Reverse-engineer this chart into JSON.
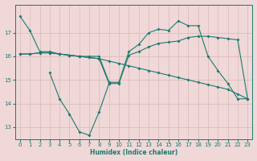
{
  "xlabel": "Humidex (Indice chaleur)",
  "x": [
    0,
    1,
    2,
    3,
    4,
    5,
    6,
    7,
    8,
    9,
    10,
    11,
    12,
    13,
    14,
    15,
    16,
    17,
    18,
    19,
    20,
    21,
    22,
    23
  ],
  "line1": [
    17.7,
    17.1,
    16.2,
    16.2,
    16.1,
    16.05,
    16.0,
    16.0,
    16.0,
    14.9,
    14.9,
    16.2,
    16.5,
    17.0,
    17.15,
    17.1,
    17.5,
    17.3,
    17.3,
    16.0,
    15.4,
    14.85,
    14.2,
    14.2
  ],
  "line2": [
    16.1,
    16.1,
    16.15,
    16.15,
    16.1,
    16.05,
    16.0,
    15.95,
    15.9,
    14.85,
    14.85,
    16.05,
    16.2,
    16.4,
    16.55,
    16.6,
    16.65,
    16.8,
    16.85,
    16.85,
    16.8,
    16.75,
    16.7,
    14.2
  ],
  "line3": [
    16.1,
    16.1,
    16.15,
    16.15,
    16.1,
    16.05,
    16.0,
    15.95,
    15.9,
    15.8,
    15.7,
    15.6,
    15.5,
    15.4,
    15.3,
    15.2,
    15.1,
    15.0,
    14.9,
    14.8,
    14.7,
    14.6,
    14.4,
    14.2
  ],
  "line4": [
    null,
    null,
    null,
    15.3,
    14.2,
    13.55,
    12.8,
    12.65,
    13.65,
    14.85,
    null,
    null,
    null,
    null,
    null,
    null,
    null,
    null,
    null,
    null,
    null,
    null,
    null,
    null
  ],
  "line_color": "#1a7a6e",
  "bg_color": "#f0d8d8",
  "plot_bg_color": "#f0d8d8",
  "grid_color": "#d8b8b8",
  "ylim": [
    12.5,
    18.2
  ],
  "xlim": [
    -0.5,
    23.5
  ],
  "yticks": [
    13,
    14,
    15,
    16,
    17
  ],
  "xticks": [
    0,
    1,
    2,
    3,
    4,
    5,
    6,
    7,
    8,
    9,
    10,
    11,
    12,
    13,
    14,
    15,
    16,
    17,
    18,
    19,
    20,
    21,
    22,
    23
  ]
}
